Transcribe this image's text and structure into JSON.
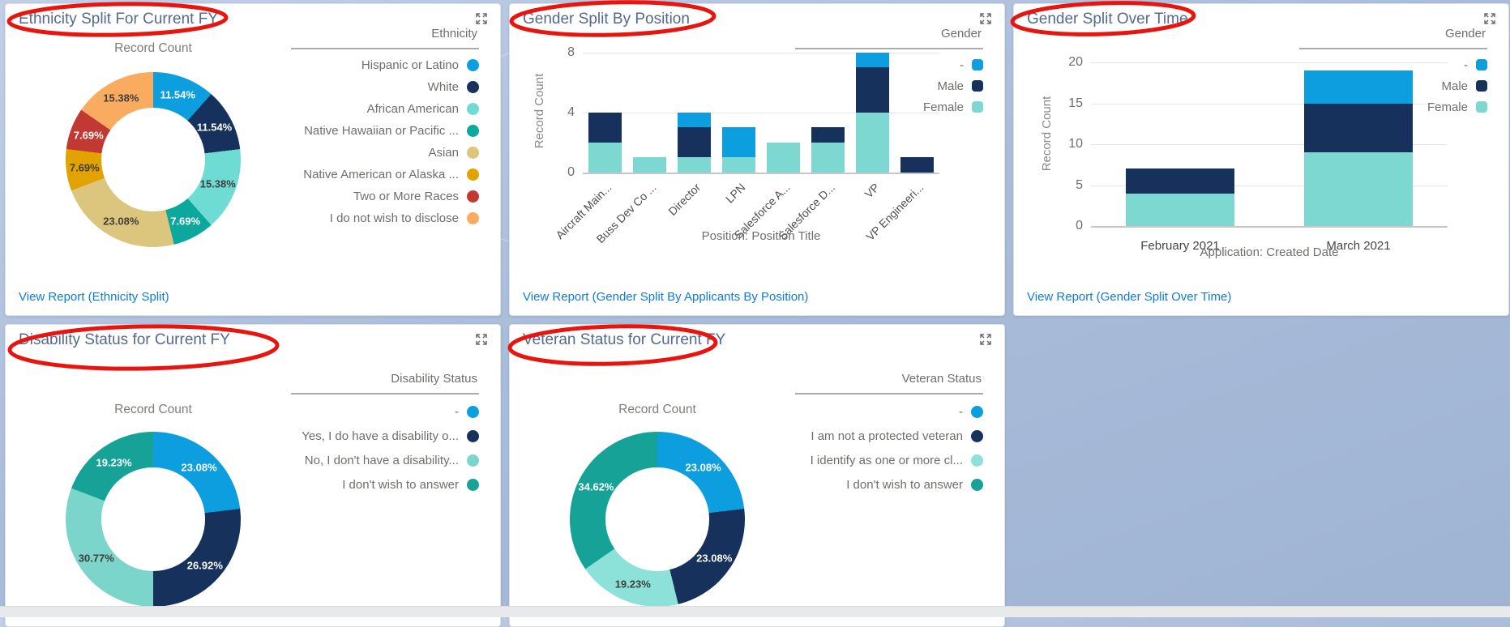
{
  "page": {
    "background_color": "#aabdda",
    "footer_strip_color": "#e8e9eb",
    "annotation_color": "#e8140e",
    "link_color": "#0f7be0",
    "title_color": "#54698d"
  },
  "cards": {
    "ethnicity": {
      "title": "Ethnicity Split For Current FY",
      "chart_title": "Record Count",
      "legend_title": "Ethnicity",
      "link": "View Report (Ethnicity Split)"
    },
    "gender_position": {
      "title": "Gender Split By Position",
      "ylabel": "Record Count",
      "legend_title": "Gender",
      "legend": [
        {
          "label": "-",
          "color": "#0d9ee0"
        },
        {
          "label": "Male",
          "color": "#16325c"
        },
        {
          "label": "Female",
          "color": "#7ed8d2"
        }
      ],
      "xlabel": "Position: Position Title",
      "link": "View Report (Gender Split By Applicants By Position)"
    },
    "gender_time": {
      "title": "Gender Split Over Time",
      "ylabel": "Record Count",
      "legend_title": "Gender",
      "legend": [
        {
          "label": "-",
          "color": "#0d9ee0"
        },
        {
          "label": "Male",
          "color": "#16325c"
        },
        {
          "label": "Female",
          "color": "#7ed8d2"
        }
      ],
      "xlabel": "Application: Created Date",
      "link": "View Report (Gender Split Over Time)"
    },
    "disability": {
      "title": "Disability Status for Current FY",
      "chart_title": "Record Count",
      "legend_title": "Disability Status"
    },
    "veteran": {
      "title": "Veteran Status for Current FY",
      "chart_title": "Record Count",
      "legend_title": "Veteran Status"
    }
  },
  "chart_data": [
    {
      "type": "pie",
      "title": "Ethnicity Split For Current FY",
      "value_label": "Record Count",
      "slices": [
        {
          "label": "Hispanic or Latino",
          "value": 11.54,
          "pct_label": "11.54%",
          "color": "#0d9ee0",
          "pct_color": "#ffffff"
        },
        {
          "label": "White",
          "value": 11.54,
          "pct_label": "11.54%",
          "color": "#16325c",
          "pct_color": "#ffffff"
        },
        {
          "label": "African American",
          "value": 15.38,
          "pct_label": "15.38%",
          "color": "#6edcd2",
          "pct_color": "#3e3e3c"
        },
        {
          "label": "Native Hawaiian or Pacific ...",
          "value": 7.69,
          "pct_label": "7.69%",
          "color": "#0ca79d",
          "pct_color": "#ffffff"
        },
        {
          "label": "Asian",
          "value": 23.08,
          "pct_label": "23.08%",
          "color": "#dcc57c",
          "pct_color": "#3e3e3c"
        },
        {
          "label": "Native American or Alaska ...",
          "value": 7.69,
          "pct_label": "7.69%",
          "color": "#e2a200",
          "pct_color": "#3e3e3c"
        },
        {
          "label": "Two or More Races",
          "value": 7.69,
          "pct_label": "7.69%",
          "color": "#c23934",
          "pct_color": "#ffffff"
        },
        {
          "label": "I do not wish to disclose",
          "value": 15.38,
          "pct_label": "15.38%",
          "color": "#f9ac5f",
          "pct_color": "#3e3e3c"
        }
      ]
    },
    {
      "type": "bar",
      "title": "Gender Split By Position",
      "xlabel": "Position: Position Title",
      "ylabel": "Record Count",
      "ymax": 8.2,
      "yticks": [
        0,
        4,
        8
      ],
      "bar_ratio": 0.76,
      "xlabel_rotate": true,
      "categories": [
        "Aircraft Main...",
        "Buss Dev Co ...",
        "Director",
        "LPN",
        "Salesforce A...",
        "Salesforce D...",
        "VP",
        "VP Engineeri..."
      ],
      "series": [
        {
          "name": "Female",
          "color": "#7ed8d2",
          "values": [
            2,
            1,
            1,
            1,
            2,
            2,
            4,
            0
          ]
        },
        {
          "name": "Male",
          "color": "#16325c",
          "values": [
            2,
            0,
            2,
            0,
            0,
            1,
            3,
            1
          ]
        },
        {
          "name": "-",
          "color": "#0d9ee0",
          "values": [
            0,
            0,
            1,
            2,
            0,
            0,
            1,
            0
          ]
        }
      ]
    },
    {
      "type": "bar",
      "title": "Gender Split Over Time",
      "xlabel": "Application: Created Date",
      "ylabel": "Record Count",
      "ymax": 21,
      "yticks": [
        0,
        5,
        10,
        15,
        20
      ],
      "bar_ratio": 0.61,
      "xlabel_rotate": false,
      "categories": [
        "February 2021",
        "March 2021"
      ],
      "series": [
        {
          "name": "Female",
          "color": "#7ed8d2",
          "values": [
            4,
            9
          ]
        },
        {
          "name": "Male",
          "color": "#16325c",
          "values": [
            3,
            6
          ]
        },
        {
          "name": "-",
          "color": "#0d9ee0",
          "values": [
            0,
            4
          ]
        }
      ]
    },
    {
      "type": "pie",
      "title": "Disability Status for Current FY",
      "value_label": "Record Count",
      "slices": [
        {
          "label": "-",
          "value": 23.08,
          "pct_label": "23.08%",
          "color": "#0d9ee0",
          "pct_color": "#ffffff"
        },
        {
          "label": "Yes, I do have a disability o...",
          "value": 26.92,
          "pct_label": "26.92%",
          "color": "#16325c",
          "pct_color": "#ffffff"
        },
        {
          "label": "No, I don't have a disability...",
          "value": 30.77,
          "pct_label": "30.77%",
          "color": "#7bd5ca",
          "pct_color": "#3e3e3c"
        },
        {
          "label": "I don't wish to answer",
          "value": 19.23,
          "pct_label": "19.23%",
          "color": "#17a297",
          "pct_color": "#ffffff"
        }
      ]
    },
    {
      "type": "pie",
      "title": "Veteran Status for Current FY",
      "value_label": "Record Count",
      "slices": [
        {
          "label": "-",
          "value": 23.08,
          "pct_label": "23.08%",
          "color": "#0d9ee0",
          "pct_color": "#ffffff"
        },
        {
          "label": "I am not a protected veteran",
          "value": 23.08,
          "pct_label": "23.08%",
          "color": "#16325c",
          "pct_color": "#ffffff"
        },
        {
          "label": "I identify as one or more cl...",
          "value": 19.23,
          "pct_label": "19.23%",
          "color": "#8ce2d8",
          "pct_color": "#3e3e3c"
        },
        {
          "label": "I don't wish to answer",
          "value": 34.62,
          "pct_label": "34.62%",
          "color": "#17a297",
          "pct_color": "#ffffff"
        }
      ]
    }
  ]
}
